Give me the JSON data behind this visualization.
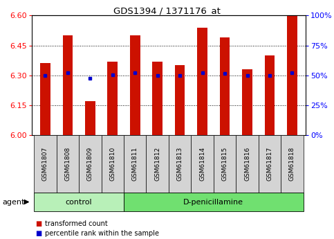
{
  "title": "GDS1394 / 1371176_at",
  "samples": [
    "GSM61807",
    "GSM61808",
    "GSM61809",
    "GSM61810",
    "GSM61811",
    "GSM61812",
    "GSM61813",
    "GSM61814",
    "GSM61815",
    "GSM61816",
    "GSM61817",
    "GSM61818"
  ],
  "red_values": [
    6.36,
    6.5,
    6.17,
    6.37,
    6.5,
    6.37,
    6.35,
    6.54,
    6.49,
    6.33,
    6.4,
    6.6
  ],
  "blue_values": [
    6.3,
    6.313,
    6.285,
    6.302,
    6.313,
    6.3,
    6.3,
    6.312,
    6.311,
    6.3,
    6.3,
    6.312
  ],
  "ylim": [
    6.0,
    6.6
  ],
  "yticks_left": [
    6.0,
    6.15,
    6.3,
    6.45,
    6.6
  ],
  "yticks_right": [
    0,
    25,
    50,
    75,
    100
  ],
  "ytick_right_labels": [
    "0%",
    "25%",
    "50%",
    "75%",
    "100%"
  ],
  "groups": [
    {
      "label": "control",
      "start": 0,
      "end": 3,
      "color": "#b8f0b8"
    },
    {
      "label": "D-penicillamine",
      "start": 4,
      "end": 11,
      "color": "#70e070"
    }
  ],
  "bar_color": "#cc1100",
  "dot_color": "#0000cc",
  "bar_width": 0.45,
  "agent_label": "agent",
  "legend_items": [
    {
      "color": "#cc1100",
      "label": "transformed count"
    },
    {
      "color": "#0000cc",
      "label": "percentile rank within the sample"
    }
  ]
}
